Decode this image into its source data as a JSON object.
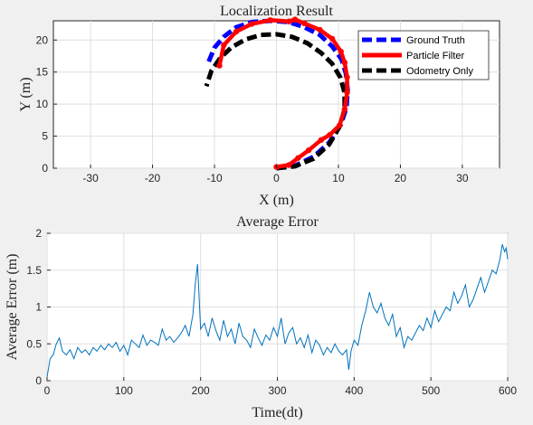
{
  "chart_data": [
    {
      "type": "line",
      "title": "Localization Result",
      "xlabel": "X (m)",
      "ylabel": "Y (m)",
      "xlim": [
        -36,
        36
      ],
      "ylim": [
        0,
        23
      ],
      "xticks": [
        -30,
        -20,
        -10,
        0,
        10,
        20,
        30
      ],
      "yticks": [
        0,
        5,
        10,
        15,
        20
      ],
      "grid": true,
      "legend_position": "top-right",
      "series": [
        {
          "name": "Ground Truth",
          "color": "#0000ff",
          "style": "dashed",
          "x": [
            0,
            3,
            6,
            8.5,
            10.4,
            11.3,
            11.5,
            11.2,
            10.5,
            9,
            7,
            4.5,
            2,
            -1,
            -4,
            -6.5,
            -8.5,
            -10,
            -11
          ],
          "y": [
            0,
            0.4,
            1.8,
            4,
            6.8,
            9.5,
            12.2,
            14.8,
            17,
            19,
            20.8,
            22,
            22.8,
            23,
            22.8,
            22,
            20.5,
            18.8,
            16.5
          ]
        },
        {
          "name": "Particle Filter",
          "color": "#ff0000",
          "style": "solid",
          "x": [
            0,
            2,
            3.5,
            5.2,
            7.2,
            8.6,
            10.2,
            11.0,
            11.4,
            11.4,
            11.0,
            10.4,
            9.0,
            7.0,
            4.5,
            3,
            2,
            -1,
            -4,
            -6.5,
            -8.5,
            -9.2
          ],
          "y": [
            0.2,
            0.5,
            1.6,
            2.8,
            4.4,
            5.2,
            6.7,
            9.2,
            11.8,
            14.2,
            16.5,
            18.2,
            20.2,
            21.6,
            22.6,
            23.2,
            22.9,
            23.1,
            22.5,
            21.3,
            19.2,
            16.0
          ]
        },
        {
          "name": "Odometry Only",
          "color": "#000000",
          "style": "dashed",
          "x": [
            0,
            3,
            6,
            8.5,
            10.2,
            11.0,
            11.0,
            10.3,
            9,
            7.2,
            5,
            2.5,
            0,
            -2.5,
            -5,
            -7.2,
            -9,
            -10.5,
            -11.3
          ],
          "y": [
            0,
            0.3,
            1.5,
            3.7,
            6.5,
            9.2,
            11.8,
            14.2,
            16.3,
            18,
            19.5,
            20.5,
            20.9,
            20.8,
            20.1,
            18.9,
            17.3,
            15.2,
            12.8
          ]
        }
      ]
    },
    {
      "type": "line",
      "title": "Average Error",
      "xlabel": "Time(dt)",
      "ylabel": "Average Error (m)",
      "xlim": [
        0,
        600
      ],
      "ylim": [
        0,
        2
      ],
      "xticks": [
        0,
        100,
        200,
        300,
        400,
        500,
        600
      ],
      "yticks": [
        0,
        0.5,
        1,
        1.5,
        2
      ],
      "grid": true,
      "series": [
        {
          "color": "#0072bd",
          "x": [
            0,
            4,
            8,
            12,
            16,
            20,
            25,
            30,
            35,
            40,
            45,
            50,
            55,
            60,
            65,
            70,
            75,
            80,
            85,
            90,
            95,
            100,
            105,
            110,
            115,
            120,
            125,
            130,
            135,
            140,
            145,
            150,
            155,
            160,
            165,
            170,
            175,
            180,
            185,
            190,
            193,
            196,
            200,
            205,
            210,
            215,
            220,
            225,
            230,
            235,
            240,
            245,
            250,
            255,
            260,
            265,
            270,
            275,
            280,
            285,
            290,
            295,
            300,
            305,
            310,
            315,
            320,
            325,
            330,
            335,
            340,
            345,
            350,
            355,
            360,
            365,
            370,
            375,
            380,
            385,
            390,
            393,
            396,
            400,
            405,
            410,
            415,
            420,
            425,
            430,
            435,
            440,
            445,
            450,
            455,
            460,
            465,
            470,
            475,
            480,
            485,
            490,
            495,
            500,
            505,
            510,
            515,
            520,
            525,
            530,
            535,
            540,
            545,
            550,
            555,
            560,
            565,
            570,
            575,
            580,
            585,
            590,
            593,
            596,
            598,
            600
          ],
          "y": [
            0.05,
            0.3,
            0.35,
            0.5,
            0.58,
            0.4,
            0.35,
            0.42,
            0.3,
            0.45,
            0.38,
            0.42,
            0.35,
            0.45,
            0.4,
            0.48,
            0.42,
            0.5,
            0.45,
            0.52,
            0.4,
            0.48,
            0.35,
            0.55,
            0.5,
            0.45,
            0.62,
            0.48,
            0.55,
            0.52,
            0.48,
            0.7,
            0.55,
            0.6,
            0.52,
            0.58,
            0.65,
            0.75,
            0.6,
            0.9,
            1.3,
            1.58,
            0.7,
            0.78,
            0.6,
            0.85,
            0.68,
            0.55,
            0.82,
            0.6,
            0.7,
            0.5,
            0.78,
            0.6,
            0.55,
            0.45,
            0.7,
            0.58,
            0.48,
            0.62,
            0.55,
            0.72,
            0.6,
            0.85,
            0.5,
            0.65,
            0.72,
            0.5,
            0.58,
            0.45,
            0.62,
            0.38,
            0.55,
            0.48,
            0.35,
            0.45,
            0.38,
            0.5,
            0.4,
            0.35,
            0.42,
            0.15,
            0.4,
            0.55,
            0.48,
            0.75,
            0.95,
            1.2,
            1.0,
            0.92,
            1.05,
            0.85,
            0.75,
            0.9,
            0.6,
            0.72,
            0.45,
            0.6,
            0.55,
            0.65,
            0.75,
            0.68,
            0.85,
            0.72,
            0.95,
            0.8,
            0.9,
            1.0,
            0.95,
            1.2,
            1.05,
            1.15,
            1.3,
            1.0,
            1.1,
            1.25,
            1.4,
            1.2,
            1.35,
            1.5,
            1.45,
            1.65,
            1.85,
            1.75,
            1.8,
            1.65
          ]
        }
      ]
    }
  ]
}
